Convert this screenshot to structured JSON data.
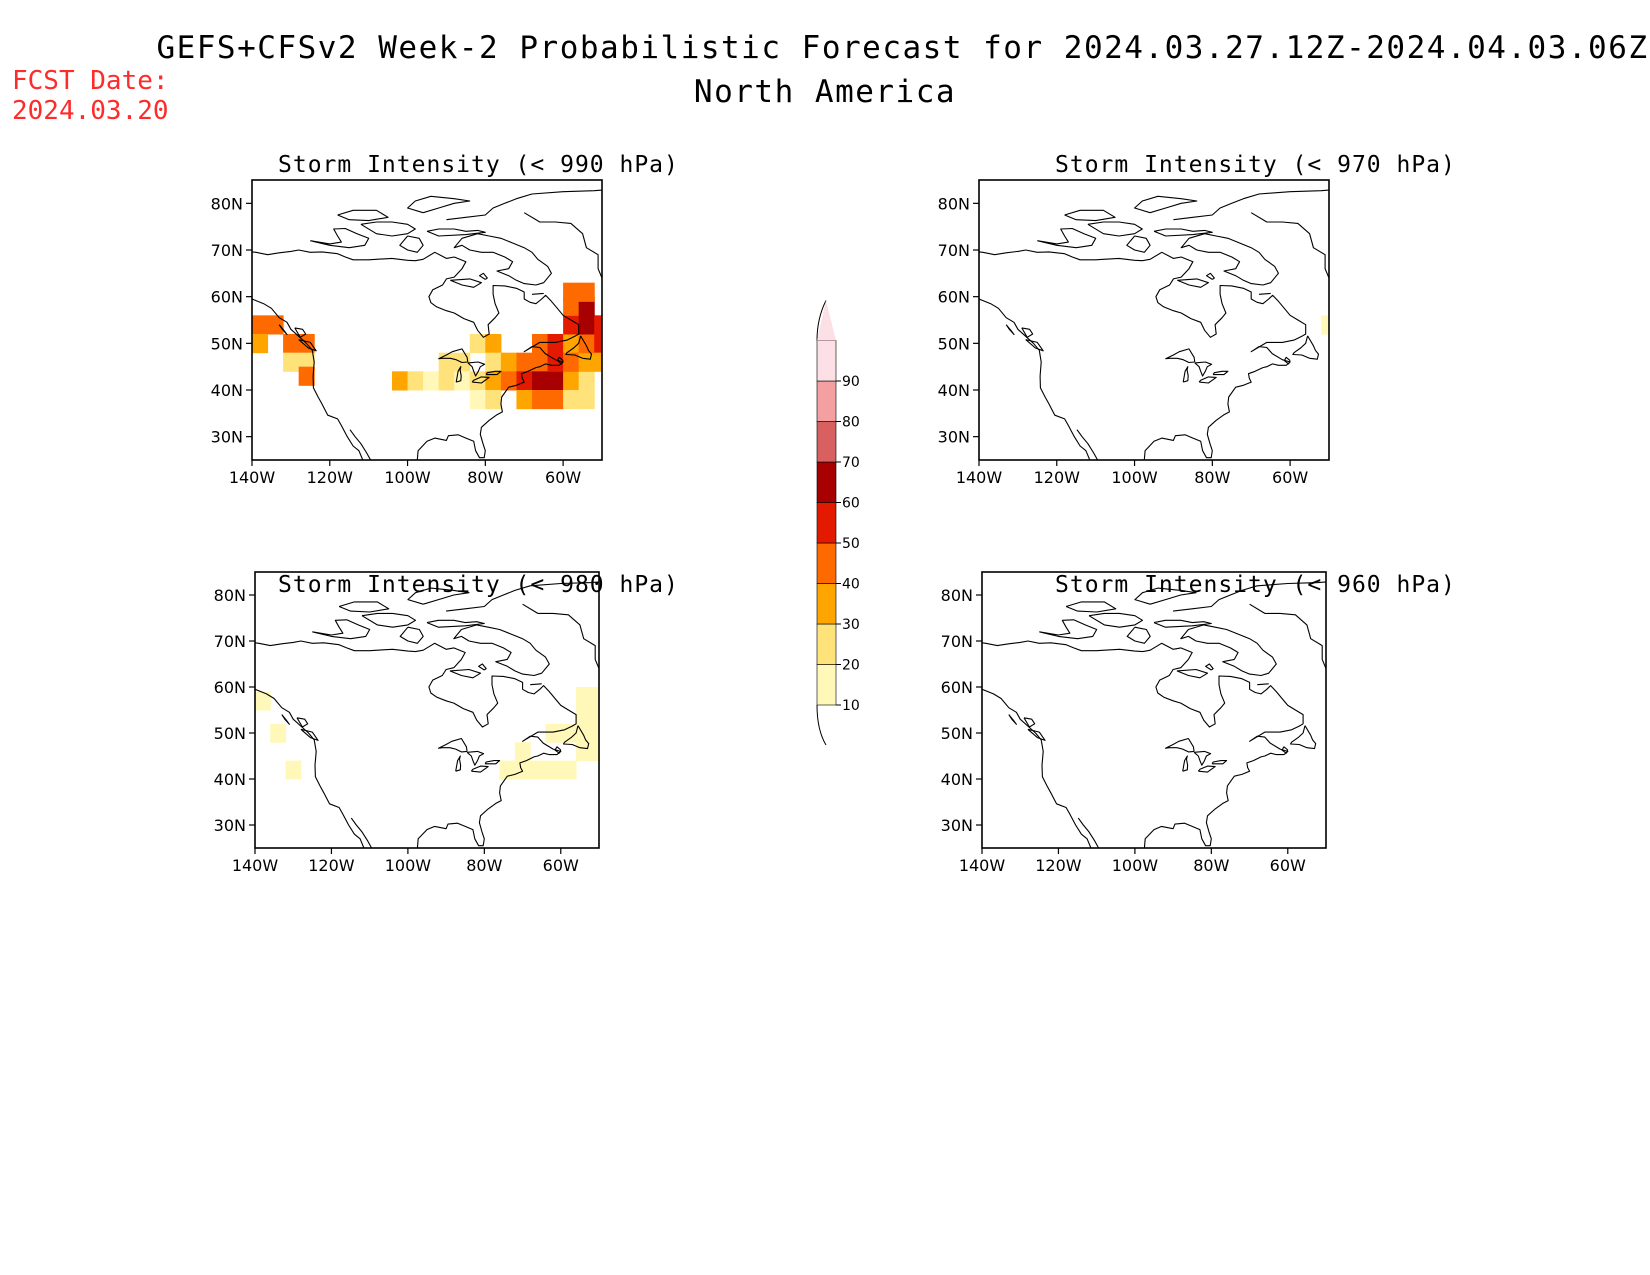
{
  "header": {
    "title": "GEFS+CFSv2 Week-2 Probabilistic Forecast for 2024.03.27.12Z-2024.04.03.06Z",
    "subtitle": "North America",
    "fcst_label": "FCST Date:",
    "fcst_date": "2024.03.20"
  },
  "axes": {
    "lat_labels": [
      "80N",
      "70N",
      "60N",
      "50N",
      "40N",
      "30N"
    ],
    "lon_labels": [
      "140W",
      "120W",
      "100W",
      "80W",
      "60W"
    ],
    "lat_values": [
      80,
      70,
      60,
      50,
      40,
      30
    ],
    "lon_values": [
      -140,
      -120,
      -100,
      -80,
      -60
    ],
    "lat_range": [
      25,
      85
    ],
    "lon_range": [
      -140,
      -50
    ]
  },
  "colorbar": {
    "labels": [
      "10",
      "20",
      "30",
      "40",
      "50",
      "60",
      "70",
      "80",
      "90"
    ],
    "colors": [
      "#fff8b8",
      "#ffe27a",
      "#ffa500",
      "#ff6a00",
      "#e41a00",
      "#a80000",
      "#d96060",
      "#f4a0a0",
      "#fde0e6"
    ]
  },
  "panels": [
    {
      "id": "p990",
      "title": "Storm Intensity (< 990 hPa)",
      "cells": [
        {
          "lon": -140,
          "lat": 52,
          "p": 40
        },
        {
          "lon": -136,
          "lat": 52,
          "p": 40
        },
        {
          "lon": -140,
          "lat": 48,
          "p": 30
        },
        {
          "lon": -132,
          "lat": 48,
          "p": 40
        },
        {
          "lon": -128,
          "lat": 48,
          "p": 40
        },
        {
          "lon": -132,
          "lat": 44,
          "p": 20
        },
        {
          "lon": -128,
          "lat": 44,
          "p": 20
        },
        {
          "lon": -128,
          "lat": 41,
          "p": 40
        },
        {
          "lon": -104,
          "lat": 40,
          "p": 30
        },
        {
          "lon": -100,
          "lat": 40,
          "p": 20
        },
        {
          "lon": -96,
          "lat": 40,
          "p": 10
        },
        {
          "lon": -92,
          "lat": 44,
          "p": 20
        },
        {
          "lon": -88,
          "lat": 44,
          "p": 20
        },
        {
          "lon": -84,
          "lat": 48,
          "p": 20
        },
        {
          "lon": -80,
          "lat": 48,
          "p": 30
        },
        {
          "lon": -80,
          "lat": 44,
          "p": 20
        },
        {
          "lon": -92,
          "lat": 40,
          "p": 20
        },
        {
          "lon": -88,
          "lat": 40,
          "p": 10
        },
        {
          "lon": -84,
          "lat": 40,
          "p": 20
        },
        {
          "lon": -80,
          "lat": 40,
          "p": 30
        },
        {
          "lon": -84,
          "lat": 36,
          "p": 10
        },
        {
          "lon": -80,
          "lat": 36,
          "p": 20
        },
        {
          "lon": -76,
          "lat": 44,
          "p": 30
        },
        {
          "lon": -72,
          "lat": 44,
          "p": 40
        },
        {
          "lon": -68,
          "lat": 44,
          "p": 40
        },
        {
          "lon": -76,
          "lat": 40,
          "p": 40
        },
        {
          "lon": -72,
          "lat": 40,
          "p": 50
        },
        {
          "lon": -68,
          "lat": 40,
          "p": 60
        },
        {
          "lon": -64,
          "lat": 40,
          "p": 60
        },
        {
          "lon": -60,
          "lat": 40,
          "p": 30
        },
        {
          "lon": -56,
          "lat": 40,
          "p": 20
        },
        {
          "lon": -72,
          "lat": 36,
          "p": 30
        },
        {
          "lon": -68,
          "lat": 36,
          "p": 40
        },
        {
          "lon": -64,
          "lat": 36,
          "p": 40
        },
        {
          "lon": -60,
          "lat": 36,
          "p": 20
        },
        {
          "lon": -56,
          "lat": 36,
          "p": 20
        },
        {
          "lon": -68,
          "lat": 48,
          "p": 40
        },
        {
          "lon": -64,
          "lat": 48,
          "p": 50
        },
        {
          "lon": -60,
          "lat": 48,
          "p": 30
        },
        {
          "lon": -64,
          "lat": 44,
          "p": 50
        },
        {
          "lon": -60,
          "lat": 44,
          "p": 40
        },
        {
          "lon": -56,
          "lat": 44,
          "p": 30
        },
        {
          "lon": -56,
          "lat": 48,
          "p": 40
        },
        {
          "lon": -52,
          "lat": 48,
          "p": 50
        },
        {
          "lon": -52,
          "lat": 44,
          "p": 30
        },
        {
          "lon": -60,
          "lat": 52,
          "p": 50
        },
        {
          "lon": -56,
          "lat": 52,
          "p": 60
        },
        {
          "lon": -52,
          "lat": 52,
          "p": 50
        },
        {
          "lon": -60,
          "lat": 56,
          "p": 40
        },
        {
          "lon": -56,
          "lat": 56,
          "p": 60
        },
        {
          "lon": -60,
          "lat": 59,
          "p": 40
        },
        {
          "lon": -56,
          "lat": 59,
          "p": 40
        }
      ]
    },
    {
      "id": "p970",
      "title": "Storm Intensity (< 970 hPa)",
      "cells": [
        {
          "lon": -52,
          "lat": 52,
          "p": 10
        }
      ]
    },
    {
      "id": "p980",
      "title": "Storm Intensity (< 980 hPa)",
      "cells": [
        {
          "lon": -140,
          "lat": 55,
          "p": 10
        },
        {
          "lon": -136,
          "lat": 48,
          "p": 10
        },
        {
          "lon": -132,
          "lat": 40,
          "p": 10
        },
        {
          "lon": -76,
          "lat": 40,
          "p": 10
        },
        {
          "lon": -72,
          "lat": 40,
          "p": 10
        },
        {
          "lon": -68,
          "lat": 40,
          "p": 10
        },
        {
          "lon": -72,
          "lat": 44,
          "p": 10
        },
        {
          "lon": -64,
          "lat": 40,
          "p": 10
        },
        {
          "lon": -60,
          "lat": 40,
          "p": 10
        },
        {
          "lon": -64,
          "lat": 48,
          "p": 10
        },
        {
          "lon": -60,
          "lat": 48,
          "p": 10
        },
        {
          "lon": -56,
          "lat": 48,
          "p": 10
        },
        {
          "lon": -52,
          "lat": 48,
          "p": 10
        },
        {
          "lon": -56,
          "lat": 52,
          "p": 10
        },
        {
          "lon": -52,
          "lat": 52,
          "p": 10
        },
        {
          "lon": -56,
          "lat": 56,
          "p": 10
        },
        {
          "lon": -52,
          "lat": 56,
          "p": 10
        },
        {
          "lon": -56,
          "lat": 44,
          "p": 10
        },
        {
          "lon": -52,
          "lat": 44,
          "p": 10
        }
      ]
    },
    {
      "id": "p960",
      "title": "Storm Intensity (< 960 hPa)",
      "cells": []
    }
  ]
}
